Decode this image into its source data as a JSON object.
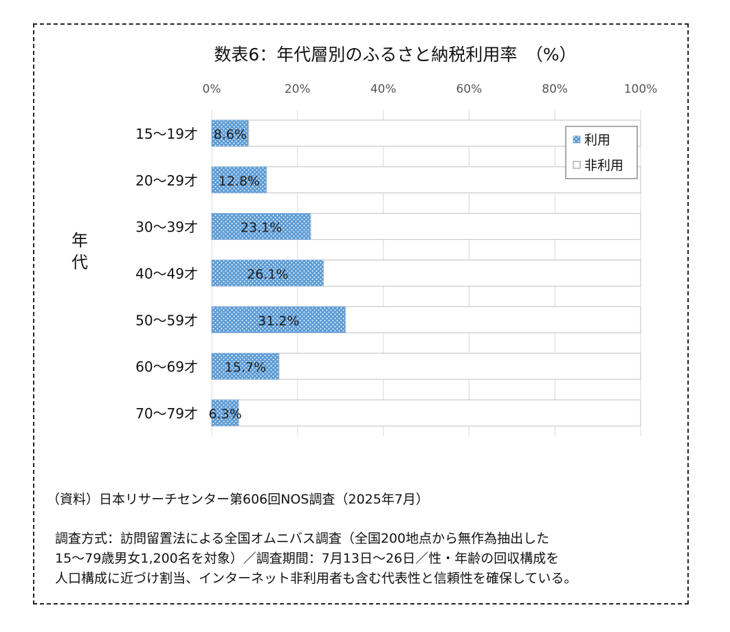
{
  "chart_data": {
    "type": "bar",
    "orientation": "horizontal",
    "stacked": true,
    "title": "数表6：年代層別のふるさと納税利用率　（%）",
    "ylabel": "年代",
    "categories": [
      "15～19才",
      "20～29才",
      "30～39才",
      "40～49才",
      "50～59才",
      "60～69才",
      "70～79才"
    ],
    "series": [
      {
        "name": "利用",
        "values": [
          8.6,
          12.8,
          23.1,
          26.1,
          31.2,
          15.7,
          6.3
        ],
        "labels": [
          "8.6%",
          "12.8%",
          "23.1%",
          "26.1%",
          "31.2%",
          "15.7%",
          "6.3%"
        ]
      },
      {
        "name": "非利用",
        "values": [
          91.4,
          87.2,
          76.9,
          73.9,
          68.8,
          84.3,
          93.7
        ]
      }
    ],
    "xlim": [
      0,
      100
    ],
    "xticks": [
      "0%",
      "20%",
      "40%",
      "60%",
      "80%",
      "100%"
    ],
    "xtick_values": [
      0,
      20,
      40,
      60,
      80,
      100
    ],
    "grid": true,
    "legend": "top-right",
    "colors": {
      "use": "#5b9bd5",
      "use_dots": "#ffffff",
      "nonuse": "#ffffff",
      "outline": "#bfbfbf"
    }
  },
  "source": "（資料）日本リサーチセンター第606回NOS調査（2025年7月）",
  "note_lines": [
    "調査方式：訪問留置法による全国オムニバス調査（全国200地点から無作為抽出した",
    "15～79歳男女1,200名を対象）／調査期間：7月13日～26日／性・年齢の回収構成を",
    "人口構成に近づけ割当、インターネット非利用者も含む代表性と信頼性を確保している。"
  ]
}
